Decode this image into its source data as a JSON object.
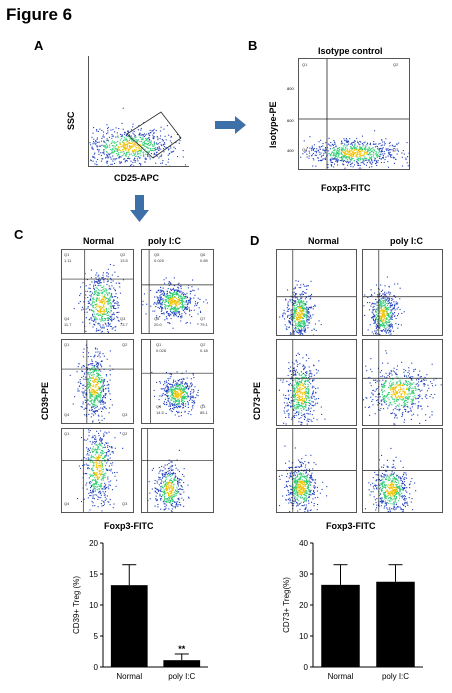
{
  "figure_title": "Figure 6",
  "panels": {
    "A": {
      "letter": "A",
      "xlabel": "CD25-APC",
      "ylabel": "SSC"
    },
    "B": {
      "letter": "B",
      "title": "Isotype control",
      "xlabel": "Foxp3-FITC",
      "ylabel": "Isotype-PE",
      "quadrants": [
        "Q1",
        "Q2",
        "Q4",
        "Q3"
      ],
      "yticks": [
        "800",
        "600",
        "400"
      ]
    },
    "C": {
      "letter": "C",
      "col_headers": [
        "Normal",
        "poly I:C"
      ],
      "xlabel": "Foxp3-FITC",
      "ylabel": "CD39-PE",
      "row1_normal": [
        "Q1",
        "1.11",
        "Q2",
        "13.5",
        "Q4",
        "11.7",
        "Q3",
        "73.7"
      ],
      "row1_polyic": [
        "Q5",
        "0.020",
        "Q6",
        "0.89",
        "Q8",
        "20.0",
        "Q7",
        "79.1"
      ],
      "row2_polyic": [
        "Q1",
        "0.028",
        "Q2",
        "0.18",
        "Q4",
        "14.5",
        "Q3",
        "85.1"
      ],
      "row2_normal": [
        "Q1",
        "Q2",
        "Q4",
        "Q3"
      ],
      "row3_normal": [
        "Q1",
        "Q2",
        "Q4",
        "Q3"
      ]
    },
    "D": {
      "letter": "D",
      "col_headers": [
        "Normal",
        "poly I:C"
      ],
      "xlabel": "Foxp3-FITC",
      "ylabel": "CD73-PE"
    }
  },
  "chart_data": [
    {
      "type": "bar",
      "categories": [
        "Normal",
        "poly I:C"
      ],
      "values": [
        13.2,
        1.1
      ],
      "errors": [
        3.3,
        1.0
      ],
      "ylabel": "CD39+ Treg (%)",
      "ylim": [
        0,
        20
      ],
      "yticks": [
        "0",
        "5",
        "10",
        "15",
        "20"
      ],
      "annotation": "**"
    },
    {
      "type": "bar",
      "categories": [
        "Normal",
        "poly I:C"
      ],
      "values": [
        26.5,
        27.5
      ],
      "errors": [
        6.5,
        5.5
      ],
      "ylabel": "CD73+ Treg(%)",
      "ylim": [
        0,
        40
      ],
      "yticks": [
        "0",
        "10",
        "20",
        "30",
        "40"
      ]
    }
  ],
  "colors": {
    "bar": "#000000",
    "dots_low": "#1f3fbf",
    "dots_mid": "#2ecc71",
    "dots_high": "#f2c200",
    "gate": "#222222",
    "arrow": "#3d6fa8"
  }
}
